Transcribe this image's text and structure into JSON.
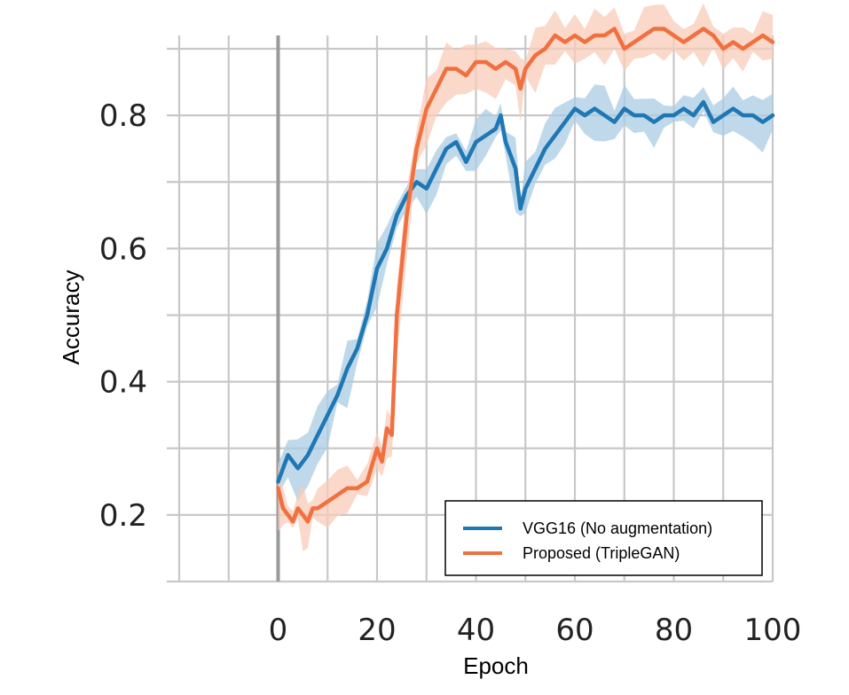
{
  "chart_data": {
    "type": "line",
    "title": "",
    "xlabel": "Epoch",
    "ylabel": "Accuracy",
    "xlim": [
      -20,
      100
    ],
    "ylim": [
      0.1,
      0.92
    ],
    "x_ticks": [
      0,
      20,
      40,
      60,
      80,
      100
    ],
    "x_tick_labels": [
      "0",
      "20",
      "40",
      "60",
      "80",
      "100"
    ],
    "y_ticks": [
      0.2,
      0.4,
      0.6,
      0.8
    ],
    "y_tick_labels": [
      "0.2",
      "0.4",
      "0.6",
      "0.8"
    ],
    "grid": true,
    "legend_position": "lower-right",
    "series": [
      {
        "name": "VGG16 (No augmentation)",
        "color": "#1f77b4",
        "band_color": "#a9cce3",
        "x": [
          0,
          2,
          4,
          6,
          8,
          10,
          12,
          14,
          16,
          18,
          20,
          22,
          24,
          26,
          28,
          30,
          32,
          34,
          36,
          38,
          40,
          42,
          44,
          45,
          46,
          48,
          49,
          50,
          52,
          54,
          56,
          58,
          60,
          62,
          64,
          66,
          68,
          70,
          72,
          74,
          76,
          78,
          80,
          82,
          84,
          86,
          88,
          90,
          92,
          94,
          96,
          98,
          100
        ],
        "values": [
          0.25,
          0.29,
          0.27,
          0.29,
          0.32,
          0.35,
          0.38,
          0.42,
          0.45,
          0.5,
          0.57,
          0.6,
          0.65,
          0.68,
          0.7,
          0.69,
          0.72,
          0.75,
          0.76,
          0.73,
          0.76,
          0.77,
          0.78,
          0.8,
          0.76,
          0.72,
          0.66,
          0.69,
          0.72,
          0.75,
          0.77,
          0.79,
          0.81,
          0.8,
          0.81,
          0.8,
          0.79,
          0.81,
          0.8,
          0.8,
          0.79,
          0.8,
          0.8,
          0.81,
          0.8,
          0.82,
          0.79,
          0.8,
          0.81,
          0.8,
          0.8,
          0.79,
          0.8
        ]
      },
      {
        "name": "Proposed (TripleGAN)",
        "color": "#f07040",
        "band_color": "#f8cbb8",
        "x": [
          0,
          1,
          2,
          3,
          4,
          5,
          6,
          7,
          8,
          10,
          12,
          14,
          16,
          18,
          20,
          21,
          22,
          23,
          24,
          26,
          28,
          30,
          32,
          34,
          36,
          38,
          40,
          42,
          44,
          46,
          48,
          49,
          50,
          52,
          54,
          56,
          58,
          60,
          62,
          64,
          66,
          68,
          70,
          72,
          74,
          76,
          78,
          80,
          82,
          84,
          86,
          88,
          90,
          92,
          94,
          96,
          98,
          100
        ],
        "values": [
          0.24,
          0.21,
          0.2,
          0.19,
          0.21,
          0.2,
          0.19,
          0.21,
          0.21,
          0.22,
          0.23,
          0.24,
          0.24,
          0.25,
          0.3,
          0.28,
          0.33,
          0.32,
          0.5,
          0.65,
          0.75,
          0.81,
          0.84,
          0.87,
          0.87,
          0.86,
          0.88,
          0.88,
          0.87,
          0.88,
          0.87,
          0.84,
          0.87,
          0.89,
          0.9,
          0.92,
          0.91,
          0.92,
          0.91,
          0.92,
          0.92,
          0.93,
          0.9,
          0.91,
          0.92,
          0.93,
          0.93,
          0.92,
          0.91,
          0.92,
          0.93,
          0.92,
          0.9,
          0.91,
          0.9,
          0.91,
          0.92,
          0.91
        ]
      }
    ]
  }
}
